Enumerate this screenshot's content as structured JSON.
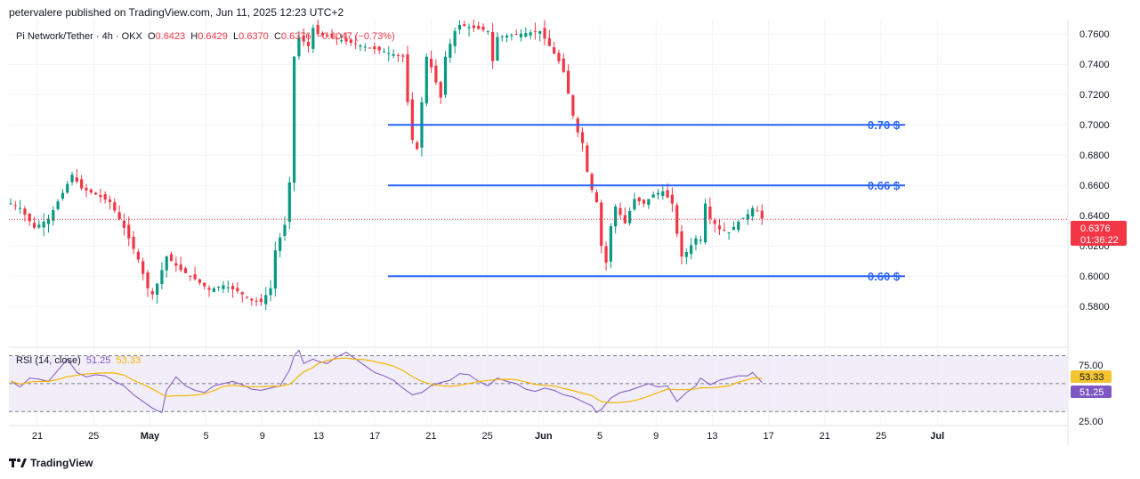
{
  "header": {
    "publisher_line": "petervalere published on TradingView.com, Jun 11, 2025 12:23 UTC+2"
  },
  "legend": {
    "symbol": "Pi Network/Tether · 4h · OKX",
    "o_label": "O",
    "o_value": "0.6423",
    "h_label": "H",
    "h_value": "0.6429",
    "l_label": "L",
    "l_value": "0.6370",
    "c_label": "C",
    "c_value": "0.6376",
    "change": "−0.0047 (−0.73%)"
  },
  "price_badge": {
    "price": "0.6376",
    "countdown": "01:36:22"
  },
  "rsi": {
    "label": "RSI (14, close)",
    "value": "51.25",
    "ma_value": "53.33",
    "upper_label": "75.00",
    "lower_label": "25.00"
  },
  "footer": {
    "brand": "TradingView"
  },
  "colors": {
    "up": "#089981",
    "down": "#f23645",
    "level_line": "#2962ff",
    "rsi_line": "#7e57c2",
    "rsi_ma": "#f4b400",
    "rsi_band": "#ede7f6"
  },
  "chart_data": {
    "type": "candlestick",
    "title": "Pi Network/Tether · 4h · OKX",
    "y_axis_ticks": [
      "0.7600",
      "0.7400",
      "0.7200",
      "0.7000",
      "0.6800",
      "0.6600",
      "0.6400",
      "0.6200",
      "0.6000",
      "0.5800"
    ],
    "ylim": [
      0.566,
      0.766
    ],
    "x_axis_ticks": [
      "21",
      "25",
      "May",
      "5",
      "9",
      "13",
      "17",
      "21",
      "25",
      "Jun",
      "5",
      "9",
      "13",
      "17",
      "21",
      "25",
      "Jul"
    ],
    "horizontal_levels": [
      {
        "label": "0.70 $",
        "value": 0.7
      },
      {
        "label": "0.66 $",
        "value": 0.66
      },
      {
        "label": "0.60 $",
        "value": 0.6
      }
    ],
    "close_path": [
      [
        0,
        0.648
      ],
      [
        2,
        0.645
      ],
      [
        5,
        0.632
      ],
      [
        8,
        0.638
      ],
      [
        11,
        0.655
      ],
      [
        13,
        0.667
      ],
      [
        15,
        0.658
      ],
      [
        18,
        0.654
      ],
      [
        21,
        0.649
      ],
      [
        24,
        0.632
      ],
      [
        27,
        0.611
      ],
      [
        29,
        0.592
      ],
      [
        30,
        0.588
      ],
      [
        31,
        0.595
      ],
      [
        33,
        0.613
      ],
      [
        36,
        0.604
      ],
      [
        39,
        0.598
      ],
      [
        42,
        0.591
      ],
      [
        45,
        0.594
      ],
      [
        48,
        0.59
      ],
      [
        51,
        0.584
      ],
      [
        53,
        0.583
      ],
      [
        55,
        0.592
      ],
      [
        56,
        0.617
      ],
      [
        58,
        0.634
      ],
      [
        59,
        0.662
      ],
      [
        60,
        0.745
      ],
      [
        61,
        0.758
      ],
      [
        63,
        0.752
      ],
      [
        64,
        0.764
      ],
      [
        65,
        0.76
      ],
      [
        83,
        0.745
      ],
      [
        84,
        0.715
      ],
      [
        85,
        0.69
      ],
      [
        86,
        0.684
      ],
      [
        87,
        0.715
      ],
      [
        88,
        0.745
      ],
      [
        89,
        0.738
      ],
      [
        91,
        0.718
      ],
      [
        92,
        0.745
      ],
      [
        94,
        0.762
      ],
      [
        95,
        0.766
      ],
      [
        101,
        0.762
      ],
      [
        102,
        0.742
      ],
      [
        103,
        0.758
      ],
      [
        112,
        0.762
      ],
      [
        113,
        0.757
      ],
      [
        116,
        0.742
      ],
      [
        117,
        0.735
      ],
      [
        119,
        0.706
      ],
      [
        120,
        0.695
      ],
      [
        121,
        0.688
      ],
      [
        122,
        0.669
      ],
      [
        123,
        0.657
      ],
      [
        124,
        0.649
      ],
      [
        125,
        0.62
      ],
      [
        126,
        0.609
      ],
      [
        127,
        0.633
      ],
      [
        128,
        0.646
      ],
      [
        130,
        0.635
      ],
      [
        132,
        0.651
      ],
      [
        134,
        0.648
      ],
      [
        136,
        0.654
      ],
      [
        138,
        0.656
      ],
      [
        140,
        0.648
      ],
      [
        141,
        0.628
      ],
      [
        142,
        0.613
      ],
      [
        143,
        0.616
      ],
      [
        145,
        0.625
      ],
      [
        146,
        0.624
      ],
      [
        147,
        0.648
      ],
      [
        148,
        0.638
      ],
      [
        150,
        0.631
      ],
      [
        152,
        0.629
      ],
      [
        154,
        0.636
      ],
      [
        156,
        0.641
      ],
      [
        157,
        0.645
      ],
      [
        158,
        0.643
      ],
      [
        159,
        0.638
      ]
    ],
    "rsi_series": {
      "name": "RSI (14, close)",
      "bands": {
        "upper": 75,
        "middle": 50,
        "lower": 25
      },
      "ylim": [
        14,
        81
      ],
      "values": [
        [
          0,
          52
        ],
        [
          2,
          47
        ],
        [
          4,
          55
        ],
        [
          6,
          54
        ],
        [
          8,
          52
        ],
        [
          10,
          62
        ],
        [
          12,
          72
        ],
        [
          14,
          60
        ],
        [
          16,
          56
        ],
        [
          18,
          58
        ],
        [
          20,
          57
        ],
        [
          22,
          52
        ],
        [
          24,
          48
        ],
        [
          26,
          40
        ],
        [
          28,
          34
        ],
        [
          30,
          28
        ],
        [
          32,
          24
        ],
        [
          33,
          44
        ],
        [
          35,
          56
        ],
        [
          37,
          48
        ],
        [
          39,
          44
        ],
        [
          41,
          42
        ],
        [
          43,
          48
        ],
        [
          45,
          50
        ],
        [
          47,
          52
        ],
        [
          49,
          49
        ],
        [
          51,
          45
        ],
        [
          53,
          44
        ],
        [
          55,
          46
        ],
        [
          57,
          48
        ],
        [
          59,
          62
        ],
        [
          60,
          75
        ],
        [
          61,
          80
        ],
        [
          62,
          68
        ],
        [
          64,
          72
        ],
        [
          65,
          70
        ],
        [
          67,
          68
        ],
        [
          69,
          74
        ],
        [
          71,
          78
        ],
        [
          73,
          72
        ],
        [
          75,
          66
        ],
        [
          77,
          60
        ],
        [
          79,
          57
        ],
        [
          81,
          53
        ],
        [
          83,
          46
        ],
        [
          85,
          40
        ],
        [
          87,
          42
        ],
        [
          89,
          48
        ],
        [
          91,
          51
        ],
        [
          93,
          53
        ],
        [
          95,
          59
        ],
        [
          97,
          58
        ],
        [
          99,
          52
        ],
        [
          101,
          48
        ],
        [
          103,
          55
        ],
        [
          105,
          52
        ],
        [
          107,
          50
        ],
        [
          109,
          45
        ],
        [
          111,
          43
        ],
        [
          113,
          46
        ],
        [
          115,
          44
        ],
        [
          117,
          40
        ],
        [
          119,
          38
        ],
        [
          121,
          34
        ],
        [
          123,
          30
        ],
        [
          124,
          24
        ],
        [
          125,
          27
        ],
        [
          127,
          37
        ],
        [
          129,
          42
        ],
        [
          131,
          44
        ],
        [
          133,
          47
        ],
        [
          135,
          50
        ],
        [
          137,
          47
        ],
        [
          139,
          48
        ],
        [
          141,
          34
        ],
        [
          143,
          42
        ],
        [
          145,
          48
        ],
        [
          146,
          55
        ],
        [
          148,
          49
        ],
        [
          150,
          53
        ],
        [
          152,
          55
        ],
        [
          154,
          57
        ],
        [
          156,
          57
        ],
        [
          157,
          60
        ],
        [
          159,
          51
        ]
      ]
    }
  }
}
